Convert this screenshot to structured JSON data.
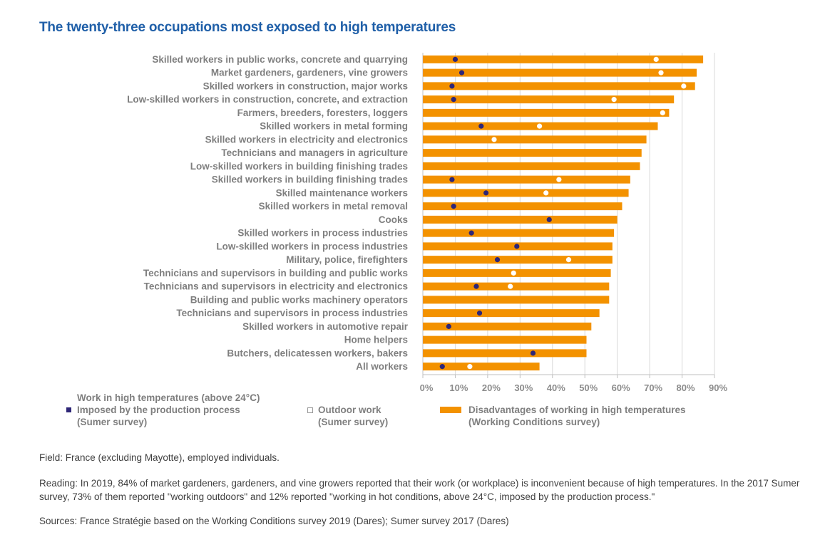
{
  "title": "The twenty-three occupations most exposed to high temperatures",
  "colors": {
    "bar": "#f39200",
    "imposed": "#2e2677",
    "outdoor": "#ffffff",
    "title": "#1f5fa8"
  },
  "legend": {
    "heading": "Work in high temperatures (above 24°C)",
    "imposed_line1": "Imposed by the production process",
    "imposed_line2": "(Sumer survey)",
    "outdoor_line1": "Outdoor work",
    "outdoor_line2": "(Sumer survey)",
    "bar_line1": "Disadvantages of working in high temperatures",
    "bar_line2": "(Working Conditions survey)"
  },
  "notes": {
    "field": "Field: France (excluding Mayotte), employed individuals.",
    "reading": "Reading: In 2019, 84% of market gardeners, gardeners, and vine growers reported that their work (or workplace) is inconvenient because of high temperatures. In the 2017 Sumer survey, 73% of them reported \"working outdoors\" and 12% reported \"working in hot conditions, above 24°C, imposed by the production process.\"",
    "sources": "Sources: France Stratégie based on the Working Conditions survey 2019 (Dares); Sumer survey 2017 (Dares)"
  },
  "chart_data": {
    "type": "bar",
    "orientation": "horizontal",
    "xlim": [
      0,
      90
    ],
    "xticks": [
      "0%",
      "10%",
      "20%",
      "30%",
      "40%",
      "50%",
      "60%",
      "70%",
      "80%",
      "90%"
    ],
    "grid": true,
    "categories": [
      "Skilled workers in public works, concrete and quarrying",
      "Market gardeners, gardeners, vine growers",
      "Skilled workers in construction, major works",
      "Low-skilled workers in construction, concrete, and extraction",
      "Farmers, breeders, foresters, loggers",
      "Skilled workers in metal forming",
      "Skilled workers in electricity and electronics",
      "Technicians and managers in agriculture",
      "Low-skilled workers in building finishing trades",
      "Skilled workers in building finishing trades",
      "Skilled maintenance workers",
      "Skilled workers in metal removal",
      "Cooks",
      "Skilled workers in process industries",
      "Low-skilled workers in process industries",
      "Military, police, firefighters",
      "Technicians and supervisors in building and public works",
      "Technicians and supervisors in electricity and electronics",
      "Building and public works machinery operators",
      "Technicians and supervisors in process industries",
      "Skilled workers in automotive repair",
      "Home helpers",
      "Butchers, delicatessen workers, bakers",
      "All workers"
    ],
    "series": [
      {
        "name": "Disadvantages of working in high temperatures (Working Conditions survey)",
        "kind": "bar",
        "values": [
          86.5,
          84.5,
          84,
          77.5,
          76,
          72.5,
          69,
          67.5,
          67,
          64,
          63.5,
          61.5,
          60,
          59,
          58.5,
          58.5,
          58,
          57.5,
          57.5,
          54.5,
          52,
          50.5,
          50.5,
          36
        ]
      },
      {
        "name": "Outdoor work (Sumer survey)",
        "kind": "dot",
        "values": [
          72,
          73.5,
          80.5,
          59,
          74,
          36,
          22,
          null,
          null,
          42,
          38,
          null,
          null,
          null,
          null,
          45,
          28,
          27,
          null,
          null,
          null,
          null,
          null,
          14.5
        ]
      },
      {
        "name": "Imposed by the production process (Sumer survey)",
        "kind": "dot",
        "values": [
          10,
          12,
          9,
          9.5,
          null,
          18,
          null,
          null,
          null,
          9,
          19.5,
          9.5,
          39,
          15,
          29,
          23,
          null,
          16.5,
          null,
          17.5,
          8,
          null,
          34,
          6
        ]
      }
    ]
  }
}
